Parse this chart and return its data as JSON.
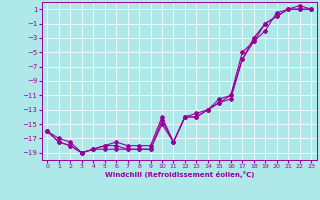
{
  "xlabel": "Windchill (Refroidissement éolien,°C)",
  "bg_color": "#aee8e8",
  "line_color": "#990099",
  "grid_color": "#ffffff",
  "xlim": [
    -0.5,
    23.5
  ],
  "ylim": [
    -20,
    2
  ],
  "yticks": [
    1,
    -1,
    -3,
    -5,
    -7,
    -9,
    -11,
    -13,
    -15,
    -17,
    -19
  ],
  "xticks": [
    0,
    1,
    2,
    3,
    4,
    5,
    6,
    7,
    8,
    9,
    10,
    11,
    12,
    13,
    14,
    15,
    16,
    17,
    18,
    19,
    20,
    21,
    22,
    23
  ],
  "line1_x": [
    0,
    1,
    2,
    3,
    4,
    5,
    6,
    7,
    8,
    9,
    10,
    11,
    12,
    13,
    14,
    15,
    16,
    17,
    18,
    19,
    20,
    21,
    22,
    23
  ],
  "line1_y": [
    -16,
    -17,
    -17.5,
    -19,
    -18.5,
    -18,
    -18,
    -18.5,
    -18.5,
    -18.5,
    -14.5,
    -17.5,
    -14,
    -14,
    -13,
    -12,
    -11,
    -5,
    -3.5,
    -2,
    0.5,
    1,
    1.5,
    1
  ],
  "line2_x": [
    0,
    1,
    2,
    3,
    4,
    5,
    6,
    7,
    8,
    9,
    10,
    11,
    12,
    13,
    14,
    15,
    16,
    17,
    18,
    19,
    20,
    21,
    22,
    23
  ],
  "line2_y": [
    -16,
    -17.5,
    -18,
    -19,
    -18.5,
    -18.5,
    -18.5,
    -18.5,
    -18.5,
    -18.5,
    -15,
    -17.5,
    -14,
    -14,
    -13,
    -12,
    -11.5,
    -6,
    -3,
    -1,
    0,
    1,
    1,
    1
  ],
  "line3_x": [
    0,
    1,
    2,
    3,
    4,
    5,
    6,
    7,
    8,
    9,
    10,
    11,
    12,
    13,
    14,
    15,
    16,
    17,
    18,
    19,
    20,
    21,
    22,
    23
  ],
  "line3_y": [
    -16,
    -17.5,
    -18,
    -19,
    -18.5,
    -18,
    -17.5,
    -18,
    -18,
    -18,
    -14,
    -17.5,
    -14,
    -13.5,
    -13,
    -11.5,
    -11,
    -6,
    -3.5,
    -1,
    0,
    1,
    1,
    1
  ]
}
